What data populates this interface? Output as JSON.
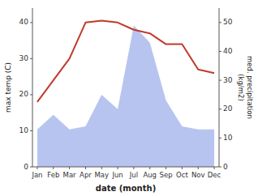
{
  "chart_data": {
    "type": "line",
    "xlabel": "date (month)",
    "ylabel": "max temp (C)",
    "y2label": "med. precipitation\n(kg/m2)",
    "categories": [
      "Jan",
      "Feb",
      "Mar",
      "Apr",
      "May",
      "Jun",
      "Jul",
      "Aug",
      "Sep",
      "Oct",
      "Nov",
      "Dec"
    ],
    "series": [
      {
        "type": "area",
        "axis": "y2",
        "color": "#b8c4f0",
        "values": [
          13,
          18,
          13,
          14,
          25,
          20,
          49,
          43,
          23,
          14,
          13,
          13
        ]
      },
      {
        "type": "line",
        "color": "#c0392b",
        "values": [
          18,
          24,
          30,
          40,
          40.5,
          40,
          38,
          37,
          34,
          34,
          27,
          26
        ]
      }
    ],
    "ylim": [
      0,
      44
    ],
    "yticks": [
      0,
      10,
      20,
      30,
      40
    ],
    "y2lim": [
      0,
      55
    ],
    "y2ticks": [
      0,
      10,
      20,
      30,
      40,
      50
    ],
    "grid": false
  }
}
